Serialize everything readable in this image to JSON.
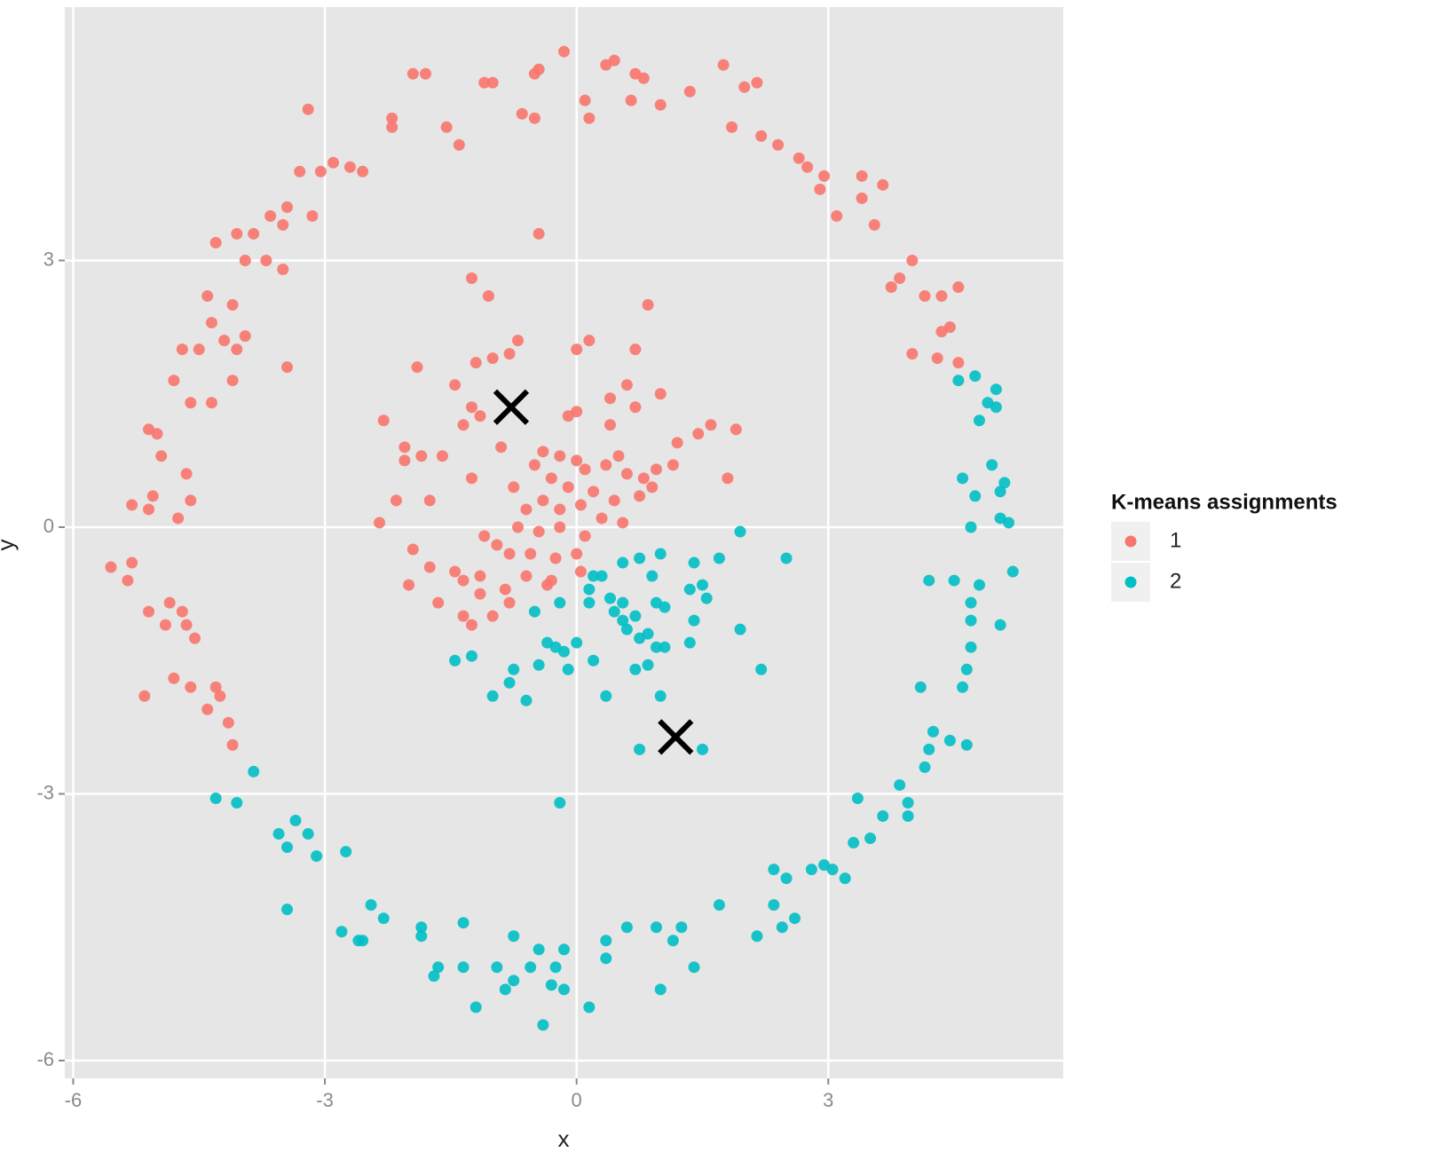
{
  "chart_data": {
    "type": "scatter",
    "x_label": "x",
    "y_label": "y",
    "xlim": [
      -6.1,
      5.8
    ],
    "ylim": [
      -6.2,
      5.85
    ],
    "xticks": [
      -6,
      -3,
      0,
      3
    ],
    "yticks": [
      -6,
      -3,
      0,
      3
    ],
    "grid": true,
    "legend_title": "K-means assignments",
    "legend_position": "right",
    "series": [
      {
        "name": "1",
        "color": "#f8766d",
        "x": [
          -1.95,
          -1.8,
          -1.1,
          -1.0,
          -0.5,
          -0.45,
          -0.15,
          0.35,
          0.45,
          0.7,
          0.8,
          1.75,
          2.0,
          2.15,
          -0.5,
          -0.65,
          0.1,
          0.15,
          0.65,
          1.0,
          1.35,
          1.85,
          2.2,
          2.4,
          2.65,
          2.75,
          2.95,
          2.9,
          3.4,
          3.65,
          3.4,
          3.55,
          3.1,
          -3.2,
          -2.2,
          -2.2,
          -1.55,
          -1.4,
          -3.3,
          -3.05,
          -2.9,
          -2.55,
          -2.7,
          -3.45,
          -3.5,
          -3.15,
          -3.85,
          -3.65,
          -4.3,
          -4.05,
          -3.7,
          -3.5,
          -3.95,
          -4.4,
          -4.1,
          -4.35,
          -4.2,
          -4.05,
          -3.95,
          -3.45,
          -4.7,
          -4.5,
          -4.8,
          -4.6,
          -4.35,
          -4.1,
          -5.1,
          -5.0,
          -4.95,
          -4.65,
          -4.6,
          -5.05,
          -5.3,
          -4.75,
          -5.1,
          -5.55,
          -5.3,
          -5.35,
          -5.1,
          -4.85,
          -4.7,
          -4.9,
          -4.65,
          -4.55,
          -5.15,
          -4.8,
          -4.6,
          -4.4,
          -4.3,
          -4.25,
          -4.15,
          -4.1,
          3.85,
          4.0,
          3.75,
          4.15,
          4.35,
          4.55,
          4.45,
          4.35,
          4.0,
          4.3,
          4.55,
          -1.25,
          -1.05,
          -0.45,
          0.85,
          -0.7,
          -0.8,
          -1.0,
          -1.2,
          -1.9,
          -1.45,
          -1.25,
          -1.15,
          -1.35,
          -2.3,
          0.0,
          0.15,
          0.7,
          0.6,
          1.0,
          0.4,
          0.7,
          0.0,
          -0.1,
          0.4,
          1.6,
          1.9,
          1.45,
          1.2,
          1.15,
          0.95,
          1.8,
          -2.05,
          -2.05,
          -1.85,
          -1.6,
          -1.25,
          -0.9,
          -0.4,
          -0.2,
          -0.5,
          0.0,
          0.1,
          0.35,
          0.5,
          0.6,
          0.8,
          0.9,
          0.75,
          -0.3,
          -0.1,
          0.2,
          0.45,
          -0.75,
          -2.15,
          -1.75,
          -2.35,
          -0.6,
          -0.4,
          -0.2,
          0.05,
          0.3,
          0.55,
          -0.7,
          -0.45,
          -0.2,
          0.1,
          -1.1,
          -0.95,
          -1.95,
          -1.75,
          -0.8,
          -0.55,
          -0.25,
          0.0,
          -1.45,
          -1.35,
          -1.15,
          -0.6,
          -0.3,
          0.05,
          -2.0,
          -1.15,
          -0.85,
          -0.35,
          -1.65,
          -1.35,
          -1.25,
          -1.0,
          -0.8
        ],
        "y": [
          5.1,
          5.1,
          5.0,
          5.0,
          5.1,
          5.15,
          5.35,
          5.2,
          5.25,
          5.1,
          5.05,
          5.2,
          4.95,
          5.0,
          4.6,
          4.65,
          4.8,
          4.6,
          4.8,
          4.75,
          4.9,
          4.5,
          4.4,
          4.3,
          4.15,
          4.05,
          3.95,
          3.8,
          3.95,
          3.85,
          3.7,
          3.4,
          3.5,
          4.7,
          4.6,
          4.5,
          4.5,
          4.3,
          4.0,
          4.0,
          4.1,
          4.0,
          4.05,
          3.6,
          3.4,
          3.5,
          3.3,
          3.5,
          3.2,
          3.3,
          3.0,
          2.9,
          3.0,
          2.6,
          2.5,
          2.3,
          2.1,
          2.0,
          2.15,
          1.8,
          2.0,
          2.0,
          1.65,
          1.4,
          1.4,
          1.65,
          1.1,
          1.05,
          0.8,
          0.6,
          0.3,
          0.35,
          0.25,
          0.1,
          0.2,
          -0.45,
          -0.4,
          -0.6,
          -0.95,
          -0.85,
          -0.95,
          -1.1,
          -1.1,
          -1.25,
          -1.9,
          -1.7,
          -1.8,
          -2.05,
          -1.8,
          -1.9,
          -2.2,
          -2.45,
          2.8,
          3.0,
          2.7,
          2.6,
          2.6,
          2.7,
          2.25,
          2.2,
          1.95,
          1.9,
          1.85,
          2.8,
          2.6,
          3.3,
          2.5,
          2.1,
          1.95,
          1.9,
          1.85,
          1.8,
          1.6,
          1.35,
          1.25,
          1.15,
          1.2,
          2.0,
          2.1,
          2.0,
          1.6,
          1.5,
          1.45,
          1.35,
          1.3,
          1.25,
          1.15,
          1.15,
          1.1,
          1.05,
          0.95,
          0.7,
          0.65,
          0.55,
          0.9,
          0.75,
          0.8,
          0.8,
          0.55,
          0.9,
          0.85,
          0.8,
          0.7,
          0.75,
          0.65,
          0.7,
          0.8,
          0.6,
          0.55,
          0.45,
          0.35,
          0.55,
          0.45,
          0.4,
          0.3,
          0.45,
          0.3,
          0.3,
          0.05,
          0.2,
          0.3,
          0.2,
          0.25,
          0.1,
          0.05,
          0.0,
          -0.05,
          0.0,
          -0.1,
          -0.1,
          -0.2,
          -0.25,
          -0.45,
          -0.3,
          -0.3,
          -0.35,
          -0.3,
          -0.5,
          -0.6,
          -0.55,
          -0.55,
          -0.6,
          -0.5,
          -0.65,
          -0.75,
          -0.7,
          -0.65,
          -0.85,
          -1.0,
          -1.1,
          -1.0,
          -0.85
        ]
      },
      {
        "name": "2",
        "color": "#00bfc4",
        "x": [
          4.55,
          4.75,
          5.0,
          4.9,
          5.0,
          4.8,
          4.6,
          4.75,
          4.95,
          5.1,
          5.05,
          5.05,
          5.15,
          4.7,
          5.2,
          4.2,
          4.5,
          4.8,
          4.7,
          4.7,
          5.05,
          4.7,
          4.65,
          4.6,
          4.1,
          4.25,
          4.2,
          4.15,
          4.45,
          4.65,
          3.85,
          3.95,
          3.65,
          3.95,
          3.35,
          3.5,
          3.3,
          3.2,
          2.95,
          3.05,
          2.8,
          2.5,
          2.35,
          2.35,
          2.45,
          2.6,
          2.15,
          1.7,
          1.25,
          1.15,
          0.95,
          0.6,
          0.35,
          0.35,
          1.4,
          1.0,
          0.15,
          -0.15,
          -0.15,
          -0.3,
          -0.25,
          -0.55,
          -0.75,
          -0.85,
          -0.95,
          -0.75,
          -0.45,
          -0.4,
          -1.35,
          -1.35,
          -1.2,
          -1.7,
          -1.65,
          -1.85,
          -1.85,
          -2.3,
          -2.45,
          -2.6,
          -2.8,
          -2.55,
          -3.45,
          -3.45,
          -3.2,
          -3.1,
          -3.35,
          -3.55,
          -2.75,
          -4.3,
          -4.05,
          -3.85,
          -0.2,
          1.95,
          2.5,
          0.55,
          0.75,
          1.0,
          1.4,
          1.7,
          0.2,
          0.3,
          0.9,
          1.35,
          1.5,
          1.55,
          0.15,
          0.4,
          0.55,
          0.95,
          1.05,
          -0.2,
          -0.5,
          0.15,
          0.45,
          0.55,
          0.7,
          0.6,
          0.75,
          0.85,
          1.4,
          1.95,
          1.35,
          0.95,
          -0.35,
          -0.25,
          -0.15,
          0.0,
          -1.45,
          -1.25,
          -0.75,
          -0.45,
          -0.1,
          0.2,
          0.7,
          0.85,
          1.05,
          -0.8,
          -0.6,
          -1.0,
          0.35,
          1.0,
          2.2,
          0.75,
          1.5
        ],
        "y": [
          1.65,
          1.7,
          1.55,
          1.4,
          1.35,
          1.2,
          0.55,
          0.35,
          0.7,
          0.5,
          0.4,
          0.1,
          0.05,
          0.0,
          -0.5,
          -0.6,
          -0.6,
          -0.65,
          -0.85,
          -1.05,
          -1.1,
          -1.35,
          -1.6,
          -1.8,
          -1.8,
          -2.3,
          -2.5,
          -2.7,
          -2.4,
          -2.45,
          -2.9,
          -3.1,
          -3.25,
          -3.25,
          -3.05,
          -3.5,
          -3.55,
          -3.95,
          -3.8,
          -3.85,
          -3.85,
          -3.95,
          -3.85,
          -4.25,
          -4.5,
          -4.4,
          -4.6,
          -4.25,
          -4.5,
          -4.65,
          -4.5,
          -4.5,
          -4.65,
          -4.85,
          -4.95,
          -5.2,
          -5.4,
          -5.2,
          -4.75,
          -5.15,
          -4.95,
          -4.95,
          -5.1,
          -5.2,
          -4.95,
          -4.6,
          -4.75,
          -5.6,
          -4.45,
          -4.95,
          -5.4,
          -5.05,
          -4.95,
          -4.5,
          -4.6,
          -4.4,
          -4.25,
          -4.65,
          -4.55,
          -4.65,
          -4.3,
          -3.6,
          -3.45,
          -3.7,
          -3.3,
          -3.45,
          -3.65,
          -3.05,
          -3.1,
          -2.75,
          -3.1,
          -0.05,
          -0.35,
          -0.4,
          -0.35,
          -0.3,
          -0.4,
          -0.35,
          -0.55,
          -0.55,
          -0.55,
          -0.7,
          -0.65,
          -0.8,
          -0.7,
          -0.8,
          -0.85,
          -0.85,
          -0.9,
          -0.85,
          -0.95,
          -0.85,
          -0.95,
          -1.05,
          -1.0,
          -1.15,
          -1.25,
          -1.2,
          -1.05,
          -1.15,
          -1.3,
          -1.35,
          -1.3,
          -1.35,
          -1.4,
          -1.3,
          -1.5,
          -1.45,
          -1.6,
          -1.55,
          -1.6,
          -1.5,
          -1.6,
          -1.55,
          -1.35,
          -1.75,
          -1.95,
          -1.9,
          -1.9,
          -1.9,
          -1.6,
          -2.5,
          -2.5
        ]
      }
    ],
    "centroids": {
      "x": [
        -0.78,
        1.18
      ],
      "y": [
        1.35,
        -2.36
      ],
      "color": "#000000"
    }
  }
}
